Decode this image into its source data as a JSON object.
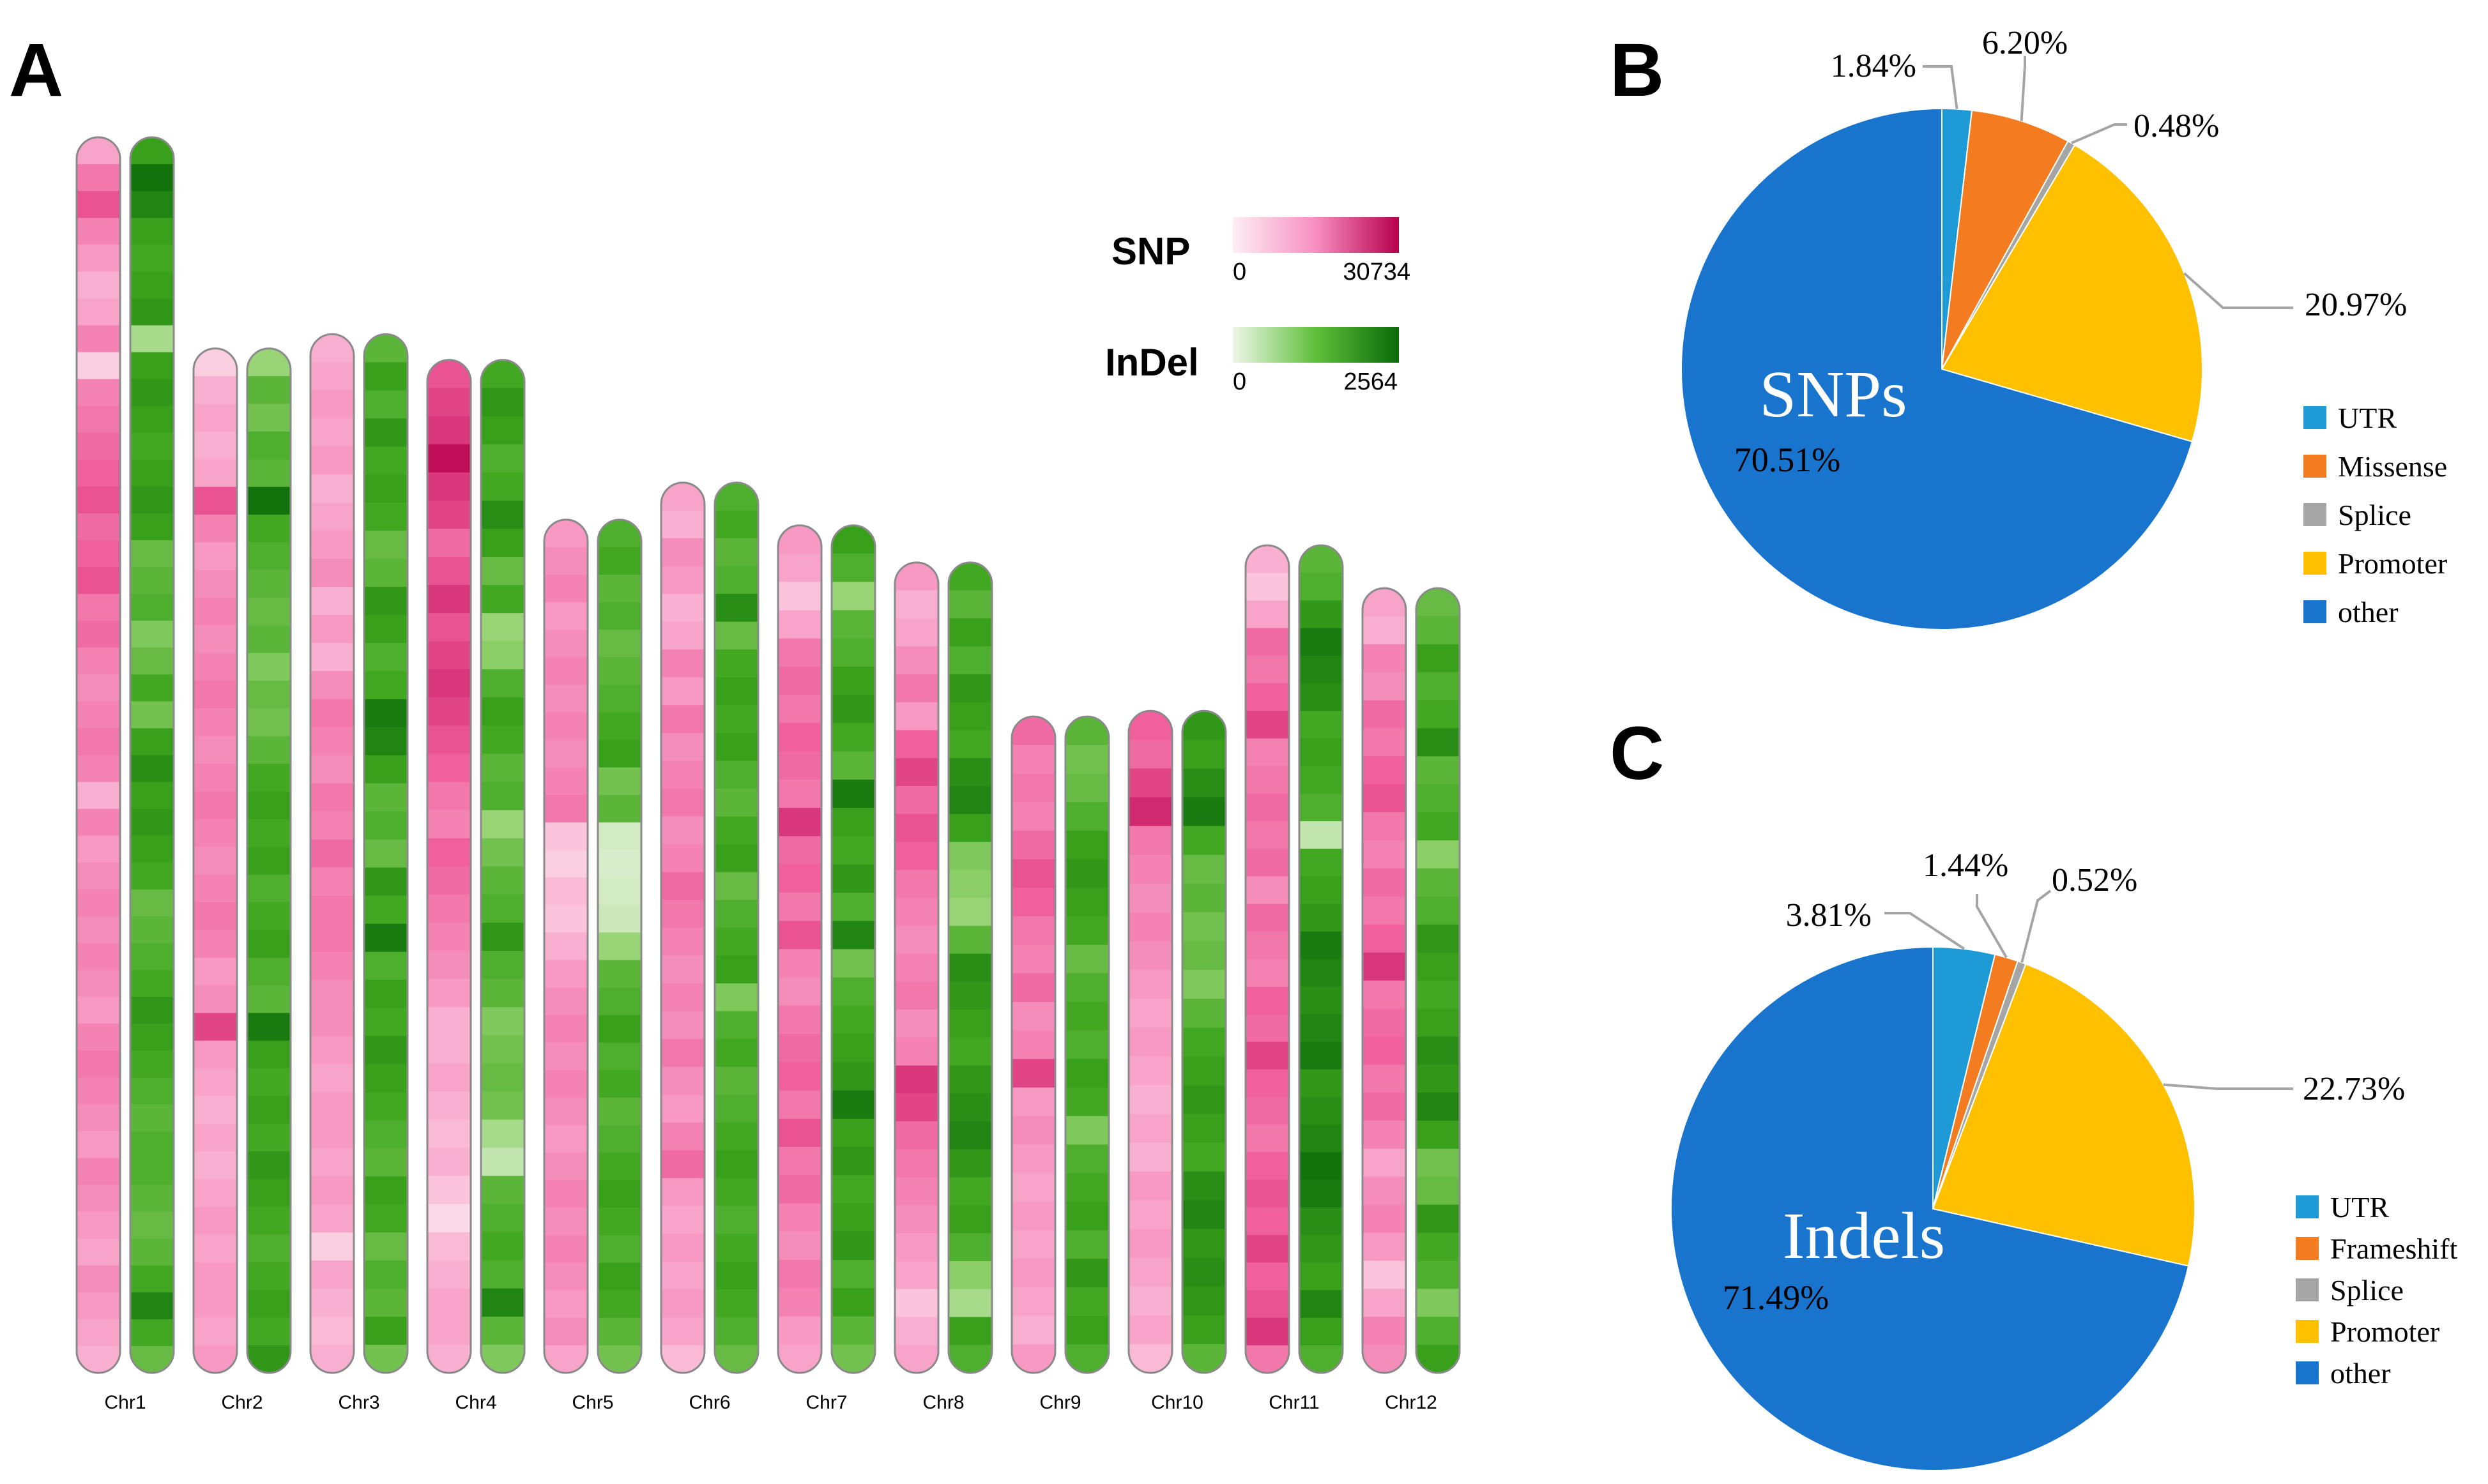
{
  "panels": {
    "a": "A",
    "b": "B",
    "c": "C"
  },
  "colors": {
    "snp_low": "#fdeef4",
    "snp_high": "#b8004d",
    "indel_low": "#eef6e8",
    "indel_high": "#0a6a0a",
    "utr": "#1e9bd7",
    "missense": "#f47c20",
    "frameshift": "#f47c20",
    "splice": "#a5a5a5",
    "promoter": "#ffc000",
    "other": "#1874cd"
  },
  "chart_data": [
    {
      "type": "heatmap",
      "title": "",
      "legend": {
        "snp": {
          "title": "SNP",
          "min_label": "0",
          "max_label": "30734",
          "min": 0,
          "max": 30734
        },
        "indel": {
          "title": "InDel",
          "min_label": "0",
          "max_label": "2564",
          "min": 0,
          "max": 2564
        }
      },
      "chromosomes": [
        {
          "name": "Chr1",
          "length": 43.3,
          "snp": [
            0.35,
            0.55,
            0.7,
            0.5,
            0.4,
            0.3,
            0.35,
            0.5,
            0.15,
            0.5,
            0.55,
            0.6,
            0.65,
            0.7,
            0.6,
            0.65,
            0.7,
            0.55,
            0.6,
            0.5,
            0.45,
            0.5,
            0.55,
            0.5,
            0.3,
            0.5,
            0.4,
            0.45,
            0.5,
            0.45,
            0.5,
            0.45,
            0.4,
            0.5,
            0.55,
            0.5,
            0.45,
            0.4,
            0.5,
            0.45,
            0.4,
            0.35,
            0.45,
            0.4,
            0.35,
            0.3
          ],
          "indel": [
            0.7,
            0.95,
            0.85,
            0.7,
            0.65,
            0.7,
            0.75,
            0.25,
            0.7,
            0.75,
            0.7,
            0.65,
            0.7,
            0.75,
            0.7,
            0.5,
            0.55,
            0.6,
            0.4,
            0.5,
            0.65,
            0.45,
            0.7,
            0.8,
            0.7,
            0.75,
            0.7,
            0.65,
            0.5,
            0.55,
            0.6,
            0.65,
            0.75,
            0.7,
            0.65,
            0.6,
            0.55,
            0.6,
            0.6,
            0.55,
            0.5,
            0.55,
            0.65,
            0.85,
            0.65,
            0.5
          ]
        },
        {
          "name": "Chr2",
          "length": 35.9,
          "snp": [
            0.15,
            0.3,
            0.35,
            0.3,
            0.35,
            0.7,
            0.5,
            0.4,
            0.45,
            0.5,
            0.45,
            0.5,
            0.55,
            0.5,
            0.45,
            0.5,
            0.55,
            0.5,
            0.45,
            0.5,
            0.55,
            0.5,
            0.4,
            0.45,
            0.75,
            0.4,
            0.35,
            0.3,
            0.35,
            0.3,
            0.35,
            0.4,
            0.35,
            0.4,
            0.4,
            0.35,
            0.4
          ],
          "indel": [
            0.3,
            0.55,
            0.45,
            0.6,
            0.55,
            0.95,
            0.65,
            0.6,
            0.55,
            0.5,
            0.55,
            0.4,
            0.5,
            0.45,
            0.55,
            0.65,
            0.7,
            0.65,
            0.7,
            0.6,
            0.65,
            0.7,
            0.6,
            0.55,
            0.9,
            0.7,
            0.65,
            0.7,
            0.65,
            0.75,
            0.7,
            0.65,
            0.6,
            0.65,
            0.7,
            0.65,
            0.75
          ]
        },
        {
          "name": "Chr3",
          "length": 36.4,
          "snp": [
            0.3,
            0.35,
            0.4,
            0.35,
            0.4,
            0.3,
            0.35,
            0.4,
            0.45,
            0.3,
            0.4,
            0.3,
            0.45,
            0.55,
            0.5,
            0.45,
            0.55,
            0.5,
            0.6,
            0.5,
            0.55,
            0.55,
            0.5,
            0.45,
            0.45,
            0.4,
            0.35,
            0.4,
            0.4,
            0.35,
            0.4,
            0.35,
            0.15,
            0.35,
            0.3,
            0.25,
            0.3
          ],
          "indel": [
            0.55,
            0.7,
            0.6,
            0.75,
            0.65,
            0.7,
            0.65,
            0.5,
            0.55,
            0.75,
            0.7,
            0.6,
            0.65,
            0.9,
            0.85,
            0.7,
            0.55,
            0.6,
            0.5,
            0.75,
            0.65,
            0.9,
            0.6,
            0.7,
            0.65,
            0.75,
            0.7,
            0.65,
            0.6,
            0.55,
            0.7,
            0.65,
            0.5,
            0.6,
            0.55,
            0.7,
            0.45
          ]
        },
        {
          "name": "Chr4",
          "length": 35.5,
          "snp": [
            0.7,
            0.75,
            0.8,
            0.95,
            0.8,
            0.75,
            0.6,
            0.7,
            0.8,
            0.7,
            0.75,
            0.8,
            0.75,
            0.7,
            0.65,
            0.55,
            0.5,
            0.65,
            0.6,
            0.55,
            0.5,
            0.45,
            0.4,
            0.3,
            0.3,
            0.35,
            0.3,
            0.25,
            0.3,
            0.2,
            0.1,
            0.25,
            0.3,
            0.35,
            0.35,
            0.3
          ],
          "indel": [
            0.65,
            0.75,
            0.7,
            0.6,
            0.65,
            0.8,
            0.7,
            0.5,
            0.65,
            0.3,
            0.35,
            0.6,
            0.7,
            0.65,
            0.55,
            0.6,
            0.3,
            0.45,
            0.55,
            0.6,
            0.75,
            0.6,
            0.55,
            0.4,
            0.45,
            0.5,
            0.45,
            0.25,
            0.15,
            0.55,
            0.6,
            0.65,
            0.6,
            0.85,
            0.55,
            0.4
          ]
        },
        {
          "name": "Chr5",
          "length": 29.9,
          "snp": [
            0.4,
            0.45,
            0.5,
            0.4,
            0.45,
            0.5,
            0.45,
            0.5,
            0.45,
            0.5,
            0.55,
            0.2,
            0.15,
            0.25,
            0.2,
            0.3,
            0.4,
            0.45,
            0.5,
            0.45,
            0.5,
            0.45,
            0.4,
            0.45,
            0.5,
            0.45,
            0.5,
            0.45,
            0.4,
            0.45,
            0.35
          ],
          "indel": [
            0.6,
            0.65,
            0.55,
            0.6,
            0.5,
            0.55,
            0.6,
            0.65,
            0.7,
            0.45,
            0.55,
            0.1,
            0.08,
            0.1,
            0.12,
            0.3,
            0.55,
            0.6,
            0.7,
            0.6,
            0.65,
            0.55,
            0.6,
            0.65,
            0.7,
            0.65,
            0.6,
            0.7,
            0.65,
            0.55,
            0.45
          ]
        },
        {
          "name": "Chr6",
          "length": 31.2,
          "snp": [
            0.35,
            0.3,
            0.45,
            0.4,
            0.3,
            0.35,
            0.5,
            0.4,
            0.55,
            0.45,
            0.5,
            0.55,
            0.45,
            0.5,
            0.6,
            0.55,
            0.5,
            0.45,
            0.5,
            0.45,
            0.55,
            0.45,
            0.4,
            0.5,
            0.6,
            0.4,
            0.35,
            0.4,
            0.35,
            0.4,
            0.35,
            0.25
          ],
          "indel": [
            0.6,
            0.65,
            0.55,
            0.6,
            0.8,
            0.5,
            0.65,
            0.7,
            0.65,
            0.7,
            0.6,
            0.55,
            0.65,
            0.7,
            0.5,
            0.6,
            0.65,
            0.7,
            0.4,
            0.6,
            0.65,
            0.55,
            0.6,
            0.65,
            0.7,
            0.65,
            0.6,
            0.65,
            0.7,
            0.65,
            0.6,
            0.5
          ]
        },
        {
          "name": "Chr7",
          "length": 29.7,
          "snp": [
            0.4,
            0.35,
            0.2,
            0.35,
            0.55,
            0.6,
            0.55,
            0.65,
            0.6,
            0.55,
            0.8,
            0.6,
            0.65,
            0.55,
            0.7,
            0.5,
            0.45,
            0.55,
            0.6,
            0.65,
            0.55,
            0.7,
            0.55,
            0.6,
            0.5,
            0.45,
            0.55,
            0.5,
            0.4,
            0.35
          ],
          "indel": [
            0.7,
            0.6,
            0.3,
            0.55,
            0.6,
            0.7,
            0.75,
            0.65,
            0.55,
            0.9,
            0.7,
            0.65,
            0.75,
            0.6,
            0.85,
            0.45,
            0.6,
            0.65,
            0.7,
            0.75,
            0.9,
            0.7,
            0.75,
            0.65,
            0.7,
            0.75,
            0.6,
            0.7,
            0.55,
            0.45
          ]
        },
        {
          "name": "Chr8",
          "length": 28.4,
          "snp": [
            0.4,
            0.3,
            0.35,
            0.45,
            0.55,
            0.4,
            0.65,
            0.75,
            0.6,
            0.7,
            0.65,
            0.55,
            0.5,
            0.45,
            0.5,
            0.55,
            0.45,
            0.5,
            0.8,
            0.75,
            0.6,
            0.55,
            0.5,
            0.45,
            0.4,
            0.35,
            0.2,
            0.3,
            0.35
          ],
          "indel": [
            0.65,
            0.55,
            0.7,
            0.6,
            0.75,
            0.7,
            0.65,
            0.8,
            0.85,
            0.7,
            0.4,
            0.35,
            0.3,
            0.55,
            0.8,
            0.75,
            0.7,
            0.65,
            0.75,
            0.8,
            0.85,
            0.75,
            0.65,
            0.7,
            0.6,
            0.35,
            0.25,
            0.7,
            0.6
          ]
        },
        {
          "name": "Chr9",
          "length": 23.0,
          "snp": [
            0.6,
            0.5,
            0.55,
            0.5,
            0.6,
            0.7,
            0.65,
            0.55,
            0.5,
            0.6,
            0.45,
            0.5,
            0.75,
            0.4,
            0.45,
            0.4,
            0.35,
            0.4,
            0.35,
            0.4,
            0.35,
            0.3,
            0.4
          ],
          "indel": [
            0.55,
            0.45,
            0.5,
            0.6,
            0.7,
            0.75,
            0.7,
            0.65,
            0.5,
            0.6,
            0.65,
            0.6,
            0.7,
            0.65,
            0.4,
            0.6,
            0.65,
            0.7,
            0.6,
            0.75,
            0.65,
            0.7,
            0.6
          ]
        },
        {
          "name": "Chr10",
          "length": 23.2,
          "snp": [
            0.65,
            0.6,
            0.75,
            0.85,
            0.55,
            0.5,
            0.45,
            0.5,
            0.45,
            0.4,
            0.35,
            0.4,
            0.35,
            0.3,
            0.35,
            0.3,
            0.4,
            0.35,
            0.4,
            0.35,
            0.3,
            0.35,
            0.25
          ],
          "indel": [
            0.75,
            0.7,
            0.8,
            0.9,
            0.65,
            0.5,
            0.55,
            0.45,
            0.5,
            0.4,
            0.55,
            0.65,
            0.7,
            0.75,
            0.7,
            0.65,
            0.8,
            0.85,
            0.75,
            0.8,
            0.75,
            0.7,
            0.55
          ]
        },
        {
          "name": "Chr11",
          "length": 29.0,
          "snp": [
            0.3,
            0.2,
            0.35,
            0.6,
            0.55,
            0.65,
            0.75,
            0.5,
            0.55,
            0.6,
            0.55,
            0.6,
            0.45,
            0.6,
            0.55,
            0.5,
            0.65,
            0.6,
            0.75,
            0.65,
            0.6,
            0.55,
            0.65,
            0.7,
            0.65,
            0.75,
            0.65,
            0.7,
            0.8,
            0.55
          ],
          "indel": [
            0.55,
            0.6,
            0.75,
            0.9,
            0.85,
            0.8,
            0.65,
            0.7,
            0.65,
            0.6,
            0.15,
            0.65,
            0.7,
            0.75,
            0.9,
            0.85,
            0.8,
            0.85,
            0.9,
            0.75,
            0.8,
            0.85,
            0.95,
            0.9,
            0.8,
            0.75,
            0.7,
            0.85,
            0.7,
            0.6
          ]
        },
        {
          "name": "Chr12",
          "length": 27.5,
          "snp": [
            0.35,
            0.3,
            0.5,
            0.45,
            0.6,
            0.55,
            0.65,
            0.7,
            0.55,
            0.5,
            0.6,
            0.55,
            0.65,
            0.8,
            0.55,
            0.6,
            0.65,
            0.55,
            0.6,
            0.5,
            0.35,
            0.45,
            0.5,
            0.4,
            0.2,
            0.35,
            0.5,
            0.45
          ],
          "indel": [
            0.5,
            0.55,
            0.7,
            0.6,
            0.65,
            0.8,
            0.55,
            0.6,
            0.65,
            0.35,
            0.55,
            0.6,
            0.75,
            0.7,
            0.65,
            0.7,
            0.8,
            0.75,
            0.85,
            0.7,
            0.45,
            0.5,
            0.75,
            0.65,
            0.6,
            0.4,
            0.6,
            0.7
          ]
        }
      ]
    },
    {
      "type": "pie",
      "center_label": "SNPs",
      "slices": [
        {
          "label": "UTR",
          "value": 1.84,
          "display": "1.84%"
        },
        {
          "label": "Missense",
          "value": 6.2,
          "display": "6.20%"
        },
        {
          "label": "Splice",
          "value": 0.48,
          "display": "0.48%"
        },
        {
          "label": "Promoter",
          "value": 20.97,
          "display": "20.97%"
        },
        {
          "label": "other",
          "value": 70.51,
          "display": "70.51%"
        }
      ],
      "legend": [
        "UTR",
        "Missense",
        "Splice",
        "Promoter",
        "other"
      ]
    },
    {
      "type": "pie",
      "center_label": "Indels",
      "slices": [
        {
          "label": "UTR",
          "value": 3.81,
          "display": "3.81%"
        },
        {
          "label": "Frameshift",
          "value": 1.44,
          "display": "1.44%"
        },
        {
          "label": "Splice",
          "value": 0.52,
          "display": "0.52%"
        },
        {
          "label": "Promoter",
          "value": 22.73,
          "display": "22.73%"
        },
        {
          "label": "other",
          "value": 71.49,
          "display": "71.49%"
        }
      ],
      "legend": [
        "UTR",
        "Frameshift",
        "Splice",
        "Promoter",
        "other"
      ]
    }
  ]
}
